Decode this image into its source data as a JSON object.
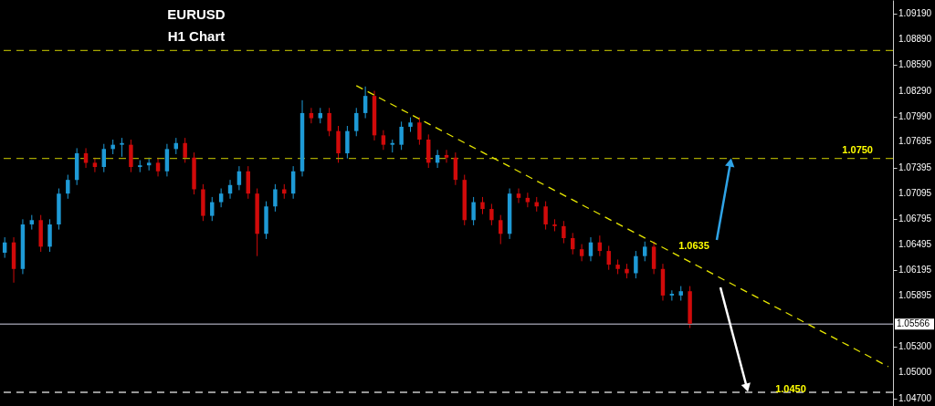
{
  "chart_data": {
    "type": "candlestick",
    "title": "EURUSD",
    "subtitle": "H1 Chart",
    "categories": [
      null,
      null,
      null,
      null,
      null,
      null,
      null,
      null,
      null,
      null,
      null,
      null,
      null,
      null,
      null,
      null,
      null,
      null,
      null,
      null,
      null,
      null,
      null,
      null,
      null,
      null,
      null,
      null,
      null,
      null,
      null,
      null,
      null,
      null,
      null,
      null,
      null,
      null,
      null,
      null,
      null,
      null,
      null,
      null,
      null,
      null,
      null,
      null,
      null,
      null,
      null,
      null,
      null,
      null,
      null,
      null,
      null,
      null,
      null,
      null,
      null,
      null,
      null,
      null,
      null,
      null,
      null,
      null,
      null,
      null,
      null,
      null,
      null,
      null,
      null,
      null,
      null,
      null,
      null,
      null,
      null,
      null,
      null,
      null,
      null,
      null,
      null,
      null,
      null,
      null,
      null,
      null,
      null,
      null,
      null,
      null,
      null,
      null,
      null
    ],
    "ohlc": [
      [
        1.064,
        1.0658,
        1.0634,
        1.0652
      ],
      [
        1.0652,
        1.0658,
        1.0605,
        1.0621
      ],
      [
        1.0621,
        1.0679,
        1.0615,
        1.0673
      ],
      [
        1.0673,
        1.0684,
        1.0667,
        1.0678
      ],
      [
        1.0678,
        1.0684,
        1.0641,
        1.0647
      ],
      [
        1.0647,
        1.0679,
        1.0641,
        1.0673
      ],
      [
        1.0673,
        1.0715,
        1.0667,
        1.0709
      ],
      [
        1.0709,
        1.0731,
        1.0703,
        1.0725
      ],
      [
        1.0725,
        1.0762,
        1.0719,
        1.0756
      ],
      [
        1.0756,
        1.0762,
        1.0739,
        1.0745
      ],
      [
        1.0745,
        1.0751,
        1.0734,
        1.074
      ],
      [
        1.074,
        1.0767,
        1.0734,
        1.0761
      ],
      [
        1.0761,
        1.0772,
        1.0755,
        1.0766
      ],
      [
        1.0766,
        1.0774,
        1.0752,
        1.0768
      ],
      [
        1.0766,
        1.0772,
        1.0734,
        1.074
      ],
      [
        1.074,
        1.0748,
        1.0734,
        1.0742
      ],
      [
        1.0742,
        1.0751,
        1.0736,
        1.0745
      ],
      [
        1.0745,
        1.0751,
        1.0729,
        1.0735
      ],
      [
        1.0735,
        1.0767,
        1.0729,
        1.0761
      ],
      [
        1.0761,
        1.0774,
        1.0755,
        1.0768
      ],
      [
        1.0768,
        1.0774,
        1.0745,
        1.0751
      ],
      [
        1.0751,
        1.0757,
        1.0708,
        1.0714
      ],
      [
        1.0714,
        1.072,
        1.0677,
        1.0683
      ],
      [
        1.0683,
        1.0705,
        1.0677,
        1.0699
      ],
      [
        1.0699,
        1.0715,
        1.0693,
        1.0709
      ],
      [
        1.0709,
        1.0725,
        1.0703,
        1.0719
      ],
      [
        1.0719,
        1.0741,
        1.0713,
        1.0735
      ],
      [
        1.0735,
        1.0741,
        1.0703,
        1.0709
      ],
      [
        1.0709,
        1.0715,
        1.0636,
        1.0662
      ],
      [
        1.0662,
        1.07,
        1.0656,
        1.0694
      ],
      [
        1.0694,
        1.072,
        1.0688,
        1.0714
      ],
      [
        1.0714,
        1.072,
        1.0703,
        1.0709
      ],
      [
        1.0709,
        1.0741,
        1.0703,
        1.0735
      ],
      [
        1.0735,
        1.0818,
        1.0729,
        1.0803
      ],
      [
        1.0803,
        1.0809,
        1.0791,
        1.0797
      ],
      [
        1.0797,
        1.0809,
        1.0791,
        1.0803
      ],
      [
        1.0803,
        1.0809,
        1.0776,
        1.0782
      ],
      [
        1.0782,
        1.0788,
        1.0745,
        1.0756
      ],
      [
        1.0756,
        1.0788,
        1.075,
        1.0782
      ],
      [
        1.0782,
        1.0809,
        1.0776,
        1.0803
      ],
      [
        1.0803,
        1.0834,
        1.0797,
        1.0823
      ],
      [
        1.0823,
        1.0829,
        1.0771,
        1.0777
      ],
      [
        1.0777,
        1.0783,
        1.076,
        1.0766
      ],
      [
        1.0766,
        1.0772,
        1.0757,
        1.0768
      ],
      [
        1.0766,
        1.0793,
        1.076,
        1.0787
      ],
      [
        1.0787,
        1.0798,
        1.0781,
        1.0792
      ],
      [
        1.0792,
        1.0798,
        1.0766,
        1.0772
      ],
      [
        1.0772,
        1.0778,
        1.0739,
        1.0745
      ],
      [
        1.0745,
        1.076,
        1.0739,
        1.0754
      ],
      [
        1.0754,
        1.076,
        1.0745,
        1.0751
      ],
      [
        1.0751,
        1.0757,
        1.0719,
        1.0725
      ],
      [
        1.0725,
        1.0731,
        1.0672,
        1.0678
      ],
      [
        1.0678,
        1.0705,
        1.0672,
        1.0699
      ],
      [
        1.0699,
        1.0705,
        1.0685,
        1.0691
      ],
      [
        1.0691,
        1.0697,
        1.0672,
        1.0678
      ],
      [
        1.0678,
        1.0684,
        1.065,
        1.0662
      ],
      [
        1.0662,
        1.0715,
        1.0656,
        1.0709
      ],
      [
        1.0709,
        1.0715,
        1.0698,
        1.0704
      ],
      [
        1.0704,
        1.071,
        1.0693,
        1.0699
      ],
      [
        1.0699,
        1.0705,
        1.0688,
        1.0694
      ],
      [
        1.0694,
        1.07,
        1.0667,
        1.0673
      ],
      [
        1.0673,
        1.0679,
        1.0665,
        1.0671
      ],
      [
        1.0671,
        1.0677,
        1.0651,
        1.0657
      ],
      [
        1.0657,
        1.0663,
        1.0638,
        1.0644
      ],
      [
        1.0644,
        1.065,
        1.063,
        1.0636
      ],
      [
        1.0636,
        1.0658,
        1.063,
        1.0652
      ],
      [
        1.0652,
        1.066,
        1.0636,
        1.0642
      ],
      [
        1.0642,
        1.0648,
        1.062,
        1.0626
      ],
      [
        1.0626,
        1.0632,
        1.0615,
        1.0621
      ],
      [
        1.0621,
        1.0627,
        1.061,
        1.0616
      ],
      [
        1.0616,
        1.0642,
        1.061,
        1.0636
      ],
      [
        1.0636,
        1.0653,
        1.063,
        1.0647
      ],
      [
        1.0647,
        1.0653,
        1.0615,
        1.0621
      ],
      [
        1.0621,
        1.0627,
        1.0584,
        1.059
      ],
      [
        1.059,
        1.0596,
        1.0584,
        1.0592
      ],
      [
        1.059,
        1.0601,
        1.0584,
        1.0595
      ],
      [
        1.0595,
        1.0601,
        1.0552,
        1.0557
      ],
      null,
      null,
      null,
      null,
      null,
      null,
      null,
      null,
      null,
      null,
      null,
      null,
      null,
      null,
      null,
      null,
      null,
      null,
      null,
      null,
      null,
      null
    ],
    "colors": [
      "#1e9ad6",
      "#d10a0a",
      "#1e9ad6",
      "#1e9ad6",
      "#d10a0a",
      "#1e9ad6",
      "#1e9ad6",
      "#1e9ad6",
      "#1e9ad6",
      "#d10a0a",
      "#d10a0a",
      "#1e9ad6",
      "#1e9ad6",
      "#1e9ad6",
      "#d10a0a",
      "#1e9ad6",
      "#1e9ad6",
      "#d10a0a",
      "#1e9ad6",
      "#1e9ad6",
      "#d10a0a",
      "#d10a0a",
      "#d10a0a",
      "#1e9ad6",
      "#1e9ad6",
      "#1e9ad6",
      "#1e9ad6",
      "#d10a0a",
      "#d10a0a",
      "#1e9ad6",
      "#1e9ad6",
      "#d10a0a",
      "#1e9ad6",
      "#1e9ad6",
      "#d10a0a",
      "#1e9ad6",
      "#d10a0a",
      "#d10a0a",
      "#1e9ad6",
      "#1e9ad6",
      "#1e9ad6",
      "#d10a0a",
      "#d10a0a",
      "#1e9ad6",
      "#1e9ad6",
      "#1e9ad6",
      "#d10a0a",
      "#d10a0a",
      "#1e9ad6",
      "#d10a0a",
      "#d10a0a",
      "#d10a0a",
      "#1e9ad6",
      "#d10a0a",
      "#d10a0a",
      "#d10a0a",
      "#1e9ad6",
      "#d10a0a",
      "#d10a0a",
      "#d10a0a",
      "#d10a0a",
      "#d10a0a",
      "#d10a0a",
      "#d10a0a",
      "#d10a0a",
      "#1e9ad6",
      "#d10a0a",
      "#d10a0a",
      "#d10a0a",
      "#d10a0a",
      "#1e9ad6",
      "#1e9ad6",
      "#d10a0a",
      "#d10a0a",
      "#1e9ad6",
      "#1e9ad6",
      "#d10a0a",
      null,
      null,
      null,
      null,
      null,
      null,
      null,
      null,
      null,
      null,
      null,
      null,
      null,
      null,
      null,
      null,
      null,
      null,
      null,
      null,
      null,
      null
    ],
    "series": [
      {
        "type": "line",
        "color": "#e6e600",
        "line_style": "dashed",
        "values": [
          null,
          null,
          null,
          null,
          null,
          null,
          null,
          null,
          null,
          null,
          null,
          null,
          null,
          null,
          null,
          null,
          null,
          null,
          null,
          null,
          null,
          null,
          null,
          null,
          null,
          null,
          null,
          null,
          null,
          null,
          null,
          null,
          null,
          null,
          null,
          null,
          null,
          null,
          null,
          1.0835,
          null,
          null,
          null,
          null,
          null,
          null,
          null,
          null,
          null,
          null,
          null,
          null,
          null,
          null,
          null,
          null,
          null,
          null,
          null,
          null,
          null,
          null,
          null,
          null,
          null,
          null,
          null,
          null,
          null,
          null,
          null,
          null,
          null,
          null,
          null,
          null,
          null,
          null,
          null,
          null,
          null,
          null,
          null,
          null,
          null,
          null,
          null,
          null,
          null,
          null,
          null,
          null,
          null,
          null,
          null,
          null,
          null,
          null,
          1.0507
        ]
      }
    ],
    "ylim": [
      1.0461,
      1.0935
    ],
    "yticks": [
      {
        "value": 1.0919,
        "label": "1.09190"
      },
      {
        "value": 1.0889,
        "label": "1.08890"
      },
      {
        "value": 1.0859,
        "label": "1.08590"
      },
      {
        "value": 1.0829,
        "label": "1.08290"
      },
      {
        "value": 1.0799,
        "label": "1.07990"
      },
      1.07695,
      1.07395,
      1.07095,
      1.06795,
      1.06495,
      1.06195,
      1.05895,
      {
        "value": 1.053,
        "label": "1.05300"
      },
      {
        "value": 1.05,
        "label": "1.05000"
      },
      {
        "value": 1.047,
        "label": "1.04700"
      }
    ],
    "ref_lines": [
      {
        "axis": "y",
        "value": 1.0876,
        "color": "#a6a600",
        "line_style": "dashed"
      },
      {
        "axis": "y",
        "value": 1.075,
        "label": "1.0750",
        "color": "#a6a600",
        "line_style": "dashed"
      },
      {
        "axis": "y",
        "value": 1.05566,
        "label": "1.05566",
        "color": "#8c8c99",
        "line_style": "solid"
      },
      {
        "axis": "y",
        "value": 1.0477,
        "color": "#c8c8c8",
        "line_style": "dashed"
      }
    ],
    "annotations": [
      "1.0635",
      "1.0450"
    ],
    "grid": false,
    "tick_labels": "y"
  }
}
